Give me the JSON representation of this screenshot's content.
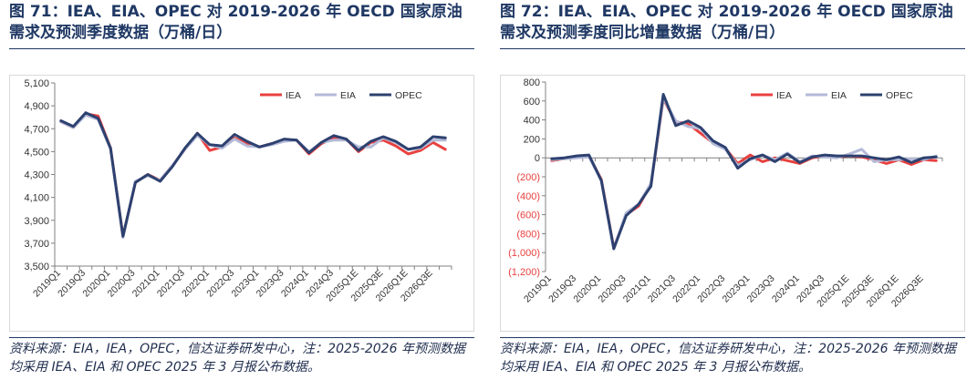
{
  "figures": [
    {
      "title": "图 71：IEA、EIA、OPEC 对 2019-2026 年 OECD 国家原油需求及预测季度数据（万桶/日）",
      "source": "资料来源：EIA，IEA，OPEC，信达证券研发中心，注：2025-2026 年预测数据均采用 IEA、EIA 和 OPEC 2025 年 3 月报公布数据。"
    },
    {
      "title": "图 72：IEA、EIA、OPEC 对 2019-2026 年 OECD 国家原油需求及预测季度同比增量数据（万桶/日）",
      "source": "资料来源：EIA，IEA，OPEC，信达证券研发中心，注：2025-2026 年预测数据均采用 IEA、EIA 和 OPEC 2025 年 3 月报公布数据。"
    }
  ],
  "chart_data": [
    {
      "type": "line",
      "x": [
        "2019Q1",
        "2019Q2",
        "2019Q3",
        "2019Q4",
        "2020Q1",
        "2020Q2",
        "2020Q3",
        "2020Q4",
        "2021Q1",
        "2021Q2",
        "2021Q3",
        "2021Q4",
        "2022Q1",
        "2022Q2",
        "2022Q3",
        "2022Q4",
        "2023Q1",
        "2023Q2",
        "2023Q3",
        "2023Q4",
        "2024Q1",
        "2024Q2",
        "2024Q3",
        "2024Q4",
        "2025Q1E",
        "2025Q2E",
        "2025Q3E",
        "2025Q4E",
        "2026Q1E",
        "2026Q2E",
        "2026Q3E",
        "2026Q4E"
      ],
      "x_tick_labels": [
        "2019Q1",
        "2019Q3",
        "2020Q1",
        "2020Q3",
        "2021Q1",
        "2021Q3",
        "2022Q1",
        "2022Q3",
        "2023Q1",
        "2023Q3",
        "2024Q1",
        "2024Q3",
        "2025Q1E",
        "2025Q3E",
        "2026Q1E",
        "2026Q3E"
      ],
      "ylim": [
        3500,
        5100
      ],
      "yticks": [
        "3,500",
        "3,700",
        "3,900",
        "4,100",
        "4,300",
        "4,500",
        "4,700",
        "4,900",
        "5,100"
      ],
      "legend": "top-right",
      "grid": false,
      "series": [
        {
          "name": "IEA",
          "color": "#e8413f",
          "values": [
            4760,
            4710,
            4830,
            4810,
            4530,
            3760,
            4230,
            4300,
            4250,
            4380,
            4520,
            4660,
            4510,
            4540,
            4620,
            4570,
            4540,
            4570,
            4600,
            4600,
            4480,
            4570,
            4620,
            4610,
            4500,
            4580,
            4600,
            4550,
            4480,
            4510,
            4580,
            4520
          ]
        },
        {
          "name": "EIA",
          "color": "#b4bad8",
          "values": [
            4760,
            4710,
            4820,
            4780,
            4520,
            3750,
            4240,
            4290,
            4250,
            4380,
            4520,
            4640,
            4560,
            4530,
            4610,
            4550,
            4540,
            4560,
            4590,
            4600,
            4500,
            4580,
            4600,
            4600,
            4540,
            4540,
            4620,
            4580,
            4520,
            4530,
            4600,
            4600
          ]
        },
        {
          "name": "OPEC",
          "color": "#2d4170",
          "values": [
            4770,
            4720,
            4840,
            4790,
            4530,
            3760,
            4230,
            4300,
            4240,
            4370,
            4530,
            4660,
            4560,
            4550,
            4650,
            4590,
            4540,
            4570,
            4610,
            4600,
            4490,
            4580,
            4640,
            4610,
            4510,
            4590,
            4630,
            4590,
            4520,
            4540,
            4630,
            4620
          ]
        }
      ]
    },
    {
      "type": "line",
      "x": [
        "2019Q1",
        "2019Q2",
        "2019Q3",
        "2019Q4",
        "2020Q1",
        "2020Q2",
        "2020Q3",
        "2020Q4",
        "2021Q1",
        "2021Q2",
        "2021Q3",
        "2021Q4",
        "2022Q1",
        "2022Q2",
        "2022Q3",
        "2022Q4",
        "2023Q1",
        "2023Q2",
        "2023Q3",
        "2023Q4",
        "2024Q1",
        "2024Q2",
        "2024Q3",
        "2024Q4",
        "2025Q1E",
        "2025Q2E",
        "2025Q3E",
        "2025Q4E",
        "2026Q1E",
        "2026Q2E",
        "2026Q3E",
        "2026Q4E"
      ],
      "x_tick_labels": [
        "2019Q1",
        "2019Q3",
        "2020Q1",
        "2020Q3",
        "2021Q1",
        "2021Q3",
        "2022Q1",
        "2022Q3",
        "2023Q1",
        "2023Q3",
        "2024Q1",
        "2024Q3",
        "2025Q1E",
        "2025Q3E",
        "2026Q1E",
        "2026Q3E"
      ],
      "ylim": [
        -1200,
        800
      ],
      "yticks": [
        "(1,200)",
        "(1,000)",
        "(800)",
        "(600)",
        "(400)",
        "(200)",
        "0",
        "200",
        "400",
        "600",
        "800"
      ],
      "negative_tick_color": "#e8413f",
      "legend": "top-right",
      "grid": false,
      "series": [
        {
          "name": "IEA",
          "color": "#e8413f",
          "values": [
            -30,
            -10,
            10,
            20,
            -230,
            -950,
            -600,
            -510,
            -280,
            620,
            380,
            360,
            260,
            160,
            100,
            -60,
            30,
            -40,
            0,
            -30,
            -60,
            0,
            20,
            10,
            20,
            10,
            -20,
            -60,
            -20,
            -70,
            -20,
            -30
          ]
        },
        {
          "name": "EIA",
          "color": "#b4bad8",
          "values": [
            -20,
            -10,
            0,
            10,
            -240,
            -960,
            -580,
            -490,
            -270,
            630,
            390,
            330,
            310,
            150,
            90,
            -80,
            -20,
            30,
            -20,
            50,
            -40,
            20,
            10,
            0,
            40,
            90,
            -40,
            -20,
            -20,
            -10,
            -20,
            20
          ]
        },
        {
          "name": "OPEC",
          "color": "#2d4170",
          "values": [
            -10,
            0,
            20,
            30,
            -240,
            -960,
            -610,
            -490,
            -300,
            670,
            340,
            390,
            320,
            180,
            110,
            -110,
            -10,
            30,
            -40,
            40,
            -50,
            10,
            30,
            20,
            20,
            20,
            0,
            -20,
            10,
            -50,
            0,
            10
          ]
        }
      ]
    }
  ]
}
